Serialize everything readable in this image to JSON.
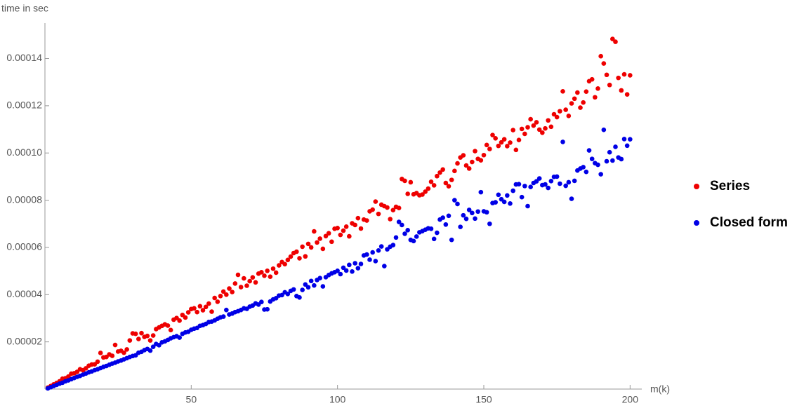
{
  "chart_data": {
    "type": "scatter",
    "y_label": "time in sec",
    "x_label": "m(k)",
    "xlim": [
      0,
      204
    ],
    "ylim": [
      0,
      0.000155
    ],
    "xticks": [
      50,
      100,
      150,
      200
    ],
    "yticks": [
      {
        "value": 2e-05,
        "label": "0.00002"
      },
      {
        "value": 4e-05,
        "label": "0.00004"
      },
      {
        "value": 6e-05,
        "label": "0.00006"
      },
      {
        "value": 8e-05,
        "label": "0.00008"
      },
      {
        "value": 0.0001,
        "label": "0.00010"
      },
      {
        "value": 0.00012,
        "label": "0.00012"
      },
      {
        "value": 0.00014,
        "label": "0.00014"
      }
    ],
    "legend": "right",
    "x": [
      1,
      2,
      3,
      4,
      5,
      6,
      7,
      8,
      9,
      10,
      11,
      12,
      13,
      14,
      15,
      16,
      17,
      18,
      19,
      20,
      21,
      22,
      23,
      24,
      25,
      26,
      27,
      28,
      29,
      30,
      31,
      32,
      33,
      34,
      35,
      36,
      37,
      38,
      39,
      40,
      41,
      42,
      43,
      44,
      45,
      46,
      47,
      48,
      49,
      50,
      51,
      52,
      53,
      54,
      55,
      56,
      57,
      58,
      59,
      60,
      61,
      62,
      63,
      64,
      65,
      66,
      67,
      68,
      69,
      70,
      71,
      72,
      73,
      74,
      75,
      76,
      77,
      78,
      79,
      80,
      81,
      82,
      83,
      84,
      85,
      86,
      87,
      88,
      89,
      90,
      91,
      92,
      93,
      94,
      95,
      96,
      97,
      98,
      99,
      100,
      101,
      102,
      103,
      104,
      105,
      106,
      107,
      108,
      109,
      110,
      111,
      112,
      113,
      114,
      115,
      116,
      117,
      118,
      119,
      120,
      121,
      122,
      123,
      124,
      125,
      126,
      127,
      128,
      129,
      130,
      131,
      132,
      133,
      134,
      135,
      136,
      137,
      138,
      139,
      140,
      141,
      142,
      143,
      144,
      145,
      146,
      147,
      148,
      149,
      150,
      151,
      152,
      153,
      154,
      155,
      156,
      157,
      158,
      159,
      160,
      161,
      162,
      163,
      164,
      165,
      166,
      167,
      168,
      169,
      170,
      171,
      172,
      173,
      174,
      175,
      176,
      177,
      178,
      179,
      180,
      181,
      182,
      183,
      184,
      185,
      186,
      187,
      188,
      189,
      190,
      191,
      192,
      193,
      194,
      195,
      196,
      197,
      198,
      199,
      200
    ],
    "series": [
      {
        "name": "Series",
        "color": "#ee0000",
        "values": [
          6e-07,
          1.3e-06,
          2e-06,
          2.6e-06,
          3.3e-06,
          4.4e-06,
          4.6e-06,
          5.3e-06,
          6.5e-06,
          6.7e-06,
          7.3e-06,
          8.4e-06,
          8e-06,
          8.8e-06,
          9.9e-06,
          1.04e-05,
          1.05e-05,
          1.16e-05,
          1.53e-05,
          1.34e-05,
          1.36e-05,
          1.47e-05,
          1.41e-05,
          1.87e-05,
          1.59e-05,
          1.62e-05,
          1.54e-05,
          1.68e-05,
          2.06e-05,
          2.36e-05,
          2.34e-05,
          2.12e-05,
          2.37e-05,
          2.21e-05,
          2.25e-05,
          2.06e-05,
          2.27e-05,
          2.54e-05,
          2.61e-05,
          2.68e-05,
          2.74e-05,
          2.69e-05,
          2.5e-05,
          2.94e-05,
          3.01e-05,
          2.9e-05,
          3.14e-05,
          3.03e-05,
          3.25e-05,
          3.39e-05,
          3.42e-05,
          3.26e-05,
          3.51e-05,
          3.34e-05,
          3.48e-05,
          3.62e-05,
          3.28e-05,
          3.86e-05,
          3.7e-05,
          3.94e-05,
          4.13e-05,
          4e-05,
          4.26e-05,
          4.11e-05,
          4.47e-05,
          4.84e-05,
          4.32e-05,
          4.69e-05,
          4.38e-05,
          4.57e-05,
          4.73e-05,
          4.52e-05,
          4.89e-05,
          4.95e-05,
          4.8e-05,
          5.01e-05,
          4.76e-05,
          5.1e-05,
          4.93e-05,
          5.24e-05,
          5.38e-05,
          5.29e-05,
          5.47e-05,
          5.61e-05,
          5.76e-05,
          5.82e-05,
          5.54e-05,
          6.03e-05,
          5.62e-05,
          6.15e-05,
          6e-05,
          6.68e-05,
          6.21e-05,
          6.37e-05,
          5.94e-05,
          6.48e-05,
          6.6e-05,
          6.24e-05,
          6.79e-05,
          6.82e-05,
          6.53e-05,
          6.71e-05,
          6.88e-05,
          6.47e-05,
          7.02e-05,
          6.95e-05,
          7.24e-05,
          6.8e-05,
          7.18e-05,
          7.14e-05,
          7.53e-05,
          7.6e-05,
          7.94e-05,
          7.42e-05,
          7.81e-05,
          7.75e-05,
          7.69e-05,
          7.2e-05,
          7.58e-05,
          7.72e-05,
          7.67e-05,
          8.9e-05,
          8.82e-05,
          8.27e-05,
          8.76e-05,
          8.25e-05,
          8.3e-05,
          8.21e-05,
          8.24e-05,
          8.36e-05,
          8.49e-05,
          8.78e-05,
          8.63e-05,
          9.02e-05,
          9.17e-05,
          9.3e-05,
          8.73e-05,
          8.59e-05,
          8.86e-05,
          9.24e-05,
          9.56e-05,
          9.81e-05,
          9.9e-05,
          9.47e-05,
          9.34e-05,
          9.62e-05,
          0.0001008,
          9.75e-05,
          9.69e-05,
          9.91e-05,
          0.0001034,
          0.0001017,
          0.0001076,
          0.0001062,
          0.000103,
          0.0001045,
          0.0001058,
          0.0001029,
          0.0001044,
          0.0001097,
          0.0001013,
          0.0001055,
          0.0001102,
          0.0001081,
          0.0001109,
          0.0001143,
          0.0001116,
          0.000113,
          0.0001099,
          0.0001086,
          0.0001104,
          0.0001138,
          0.0001111,
          0.0001164,
          0.0001152,
          0.0001177,
          0.0001261,
          0.0001183,
          0.0001157,
          0.000121,
          0.000123,
          0.0001256,
          0.0001192,
          0.0001214,
          0.000126,
          0.0001304,
          0.0001312,
          0.0001236,
          0.0001273,
          0.000141,
          0.0001379,
          0.0001331,
          0.0001288,
          0.0001483,
          0.0001471,
          0.0001318,
          0.0001265,
          0.0001333,
          0.0001248,
          0.0001329
        ]
      },
      {
        "name": "Closed form",
        "color": "#0000e6",
        "values": [
          3e-07,
          8e-07,
          1.3e-06,
          1.8e-06,
          2.3e-06,
          2.7e-06,
          3.3e-06,
          3.7e-06,
          4.2e-06,
          4.7e-06,
          5.2e-06,
          5.6e-06,
          6.1e-06,
          6.6e-06,
          7.1e-06,
          7.5e-06,
          8e-06,
          8.4e-06,
          8.9e-06,
          9.4e-06,
          9.8e-06,
          1.03e-05,
          1.08e-05,
          1.12e-05,
          1.17e-05,
          1.21e-05,
          1.26e-05,
          1.31e-05,
          1.36e-05,
          1.4e-05,
          1.43e-05,
          1.54e-05,
          1.58e-05,
          1.65e-05,
          1.7e-05,
          1.63e-05,
          1.79e-05,
          1.91e-05,
          1.86e-05,
          1.98e-05,
          2.02e-05,
          2.08e-05,
          2.15e-05,
          2.2e-05,
          2.24e-05,
          2.18e-05,
          2.34e-05,
          2.4e-05,
          2.43e-05,
          2.51e-05,
          2.56e-05,
          2.59e-05,
          2.68e-05,
          2.71e-05,
          2.76e-05,
          2.84e-05,
          2.86e-05,
          2.91e-05,
          2.98e-05,
          3.04e-05,
          3.07e-05,
          3.35e-05,
          3.16e-05,
          3.2e-05,
          3.26e-05,
          3.3e-05,
          3.35e-05,
          3.42e-05,
          3.4e-05,
          3.49e-05,
          3.54e-05,
          3.63e-05,
          3.58e-05,
          3.69e-05,
          3.37e-05,
          3.38e-05,
          3.71e-05,
          3.8e-05,
          3.85e-05,
          3.96e-05,
          3.98e-05,
          4.1e-05,
          4.03e-05,
          4.16e-05,
          4.22e-05,
          3.94e-05,
          3.88e-05,
          4.2e-05,
          4.43e-05,
          4.31e-05,
          4.58e-05,
          4.39e-05,
          4.62e-05,
          4.7e-05,
          4.35e-05,
          4.74e-05,
          4.83e-05,
          4.9e-05,
          4.95e-05,
          5.01e-05,
          4.87e-05,
          5.14e-05,
          5.02e-05,
          5.26e-05,
          4.98e-05,
          5.33e-05,
          5.12e-05,
          5.3e-05,
          5.66e-05,
          5.7e-05,
          5.48e-05,
          5.79e-05,
          5.42e-05,
          5.87e-05,
          6.04e-05,
          5.21e-05,
          5.92e-05,
          6.03e-05,
          6.1e-05,
          6.42e-05,
          7.08e-05,
          6.95e-05,
          6.58e-05,
          6.73e-05,
          6.32e-05,
          6.27e-05,
          6.46e-05,
          6.64e-05,
          6.69e-05,
          6.75e-05,
          6.81e-05,
          6.79e-05,
          6.36e-05,
          6.62e-05,
          7.18e-05,
          7.26e-05,
          6.97e-05,
          7.34e-05,
          6.32e-05,
          8e-05,
          7.84e-05,
          6.87e-05,
          7.36e-05,
          7.21e-05,
          7.59e-05,
          7.46e-05,
          7.22e-05,
          7.52e-05,
          8.34e-05,
          7.53e-05,
          7.49e-05,
          7e-05,
          7.88e-05,
          7.91e-05,
          8.23e-05,
          8.04e-05,
          7.93e-05,
          8.2e-05,
          7.86e-05,
          8.4e-05,
          8.67e-05,
          8.68e-05,
          8.13e-05,
          8.6e-05,
          7.75e-05,
          8.56e-05,
          8.73e-05,
          8.8e-05,
          8.92e-05,
          8.64e-05,
          8.67e-05,
          8.52e-05,
          8.81e-05,
          8.99e-05,
          9e-05,
          8.7e-05,
          0.0001047,
          8.61e-05,
          8.76e-05,
          8.06e-05,
          8.82e-05,
          9.26e-05,
          9.34e-05,
          9.4e-05,
          9.2e-05,
          0.0001011,
          9.75e-05,
          9.57e-05,
          9.5e-05,
          9.1e-05,
          0.0001098,
          9.65e-05,
          0.0001003,
          9.68e-05,
          0.0001026,
          9.81e-05,
          9.74e-05,
          0.0001059,
          0.0001031,
          0.0001058
        ]
      }
    ]
  }
}
